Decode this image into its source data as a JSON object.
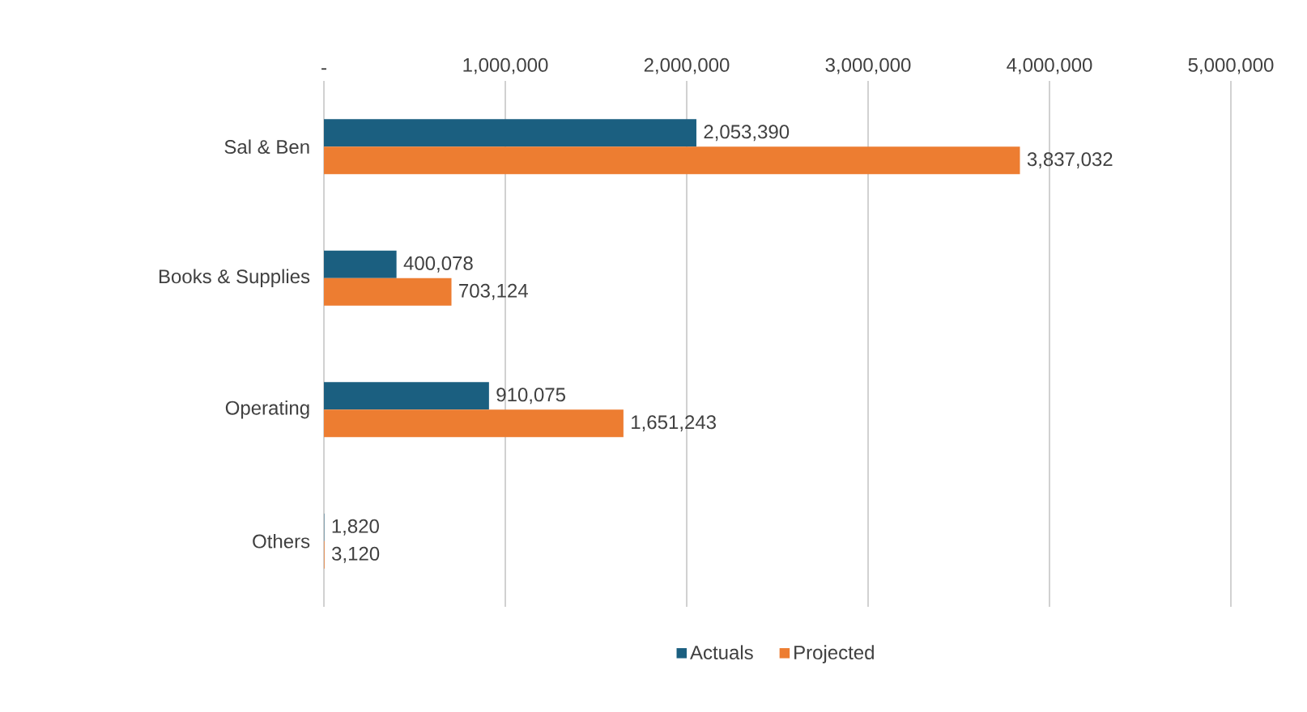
{
  "chart_data": {
    "type": "bar",
    "orientation": "horizontal",
    "categories": [
      "Sal & Ben",
      "Books & Supplies",
      "Operating",
      "Others"
    ],
    "series": [
      {
        "name": "Actuals",
        "color": "#1b5f80",
        "values": [
          2053390,
          400078,
          910075,
          1820
        ],
        "value_labels": [
          "2,053,390",
          "400,078",
          "910,075",
          "1,820"
        ]
      },
      {
        "name": "Projected",
        "color": "#ed7d31",
        "values": [
          3837032,
          703124,
          1651243,
          3120
        ],
        "value_labels": [
          "3,837,032",
          "703,124",
          "1,651,243",
          "3,120"
        ]
      }
    ],
    "xlim": [
      0,
      5000000
    ],
    "xticks": [
      {
        "value": 0,
        "label": "-"
      },
      {
        "value": 1000000,
        "label": "1,000,000"
      },
      {
        "value": 2000000,
        "label": "2,000,000"
      },
      {
        "value": 3000000,
        "label": "3,000,000"
      },
      {
        "value": 4000000,
        "label": "4,000,000"
      },
      {
        "value": 5000000,
        "label": "5,000,000"
      }
    ],
    "grid": "x",
    "legend": "bottom"
  }
}
